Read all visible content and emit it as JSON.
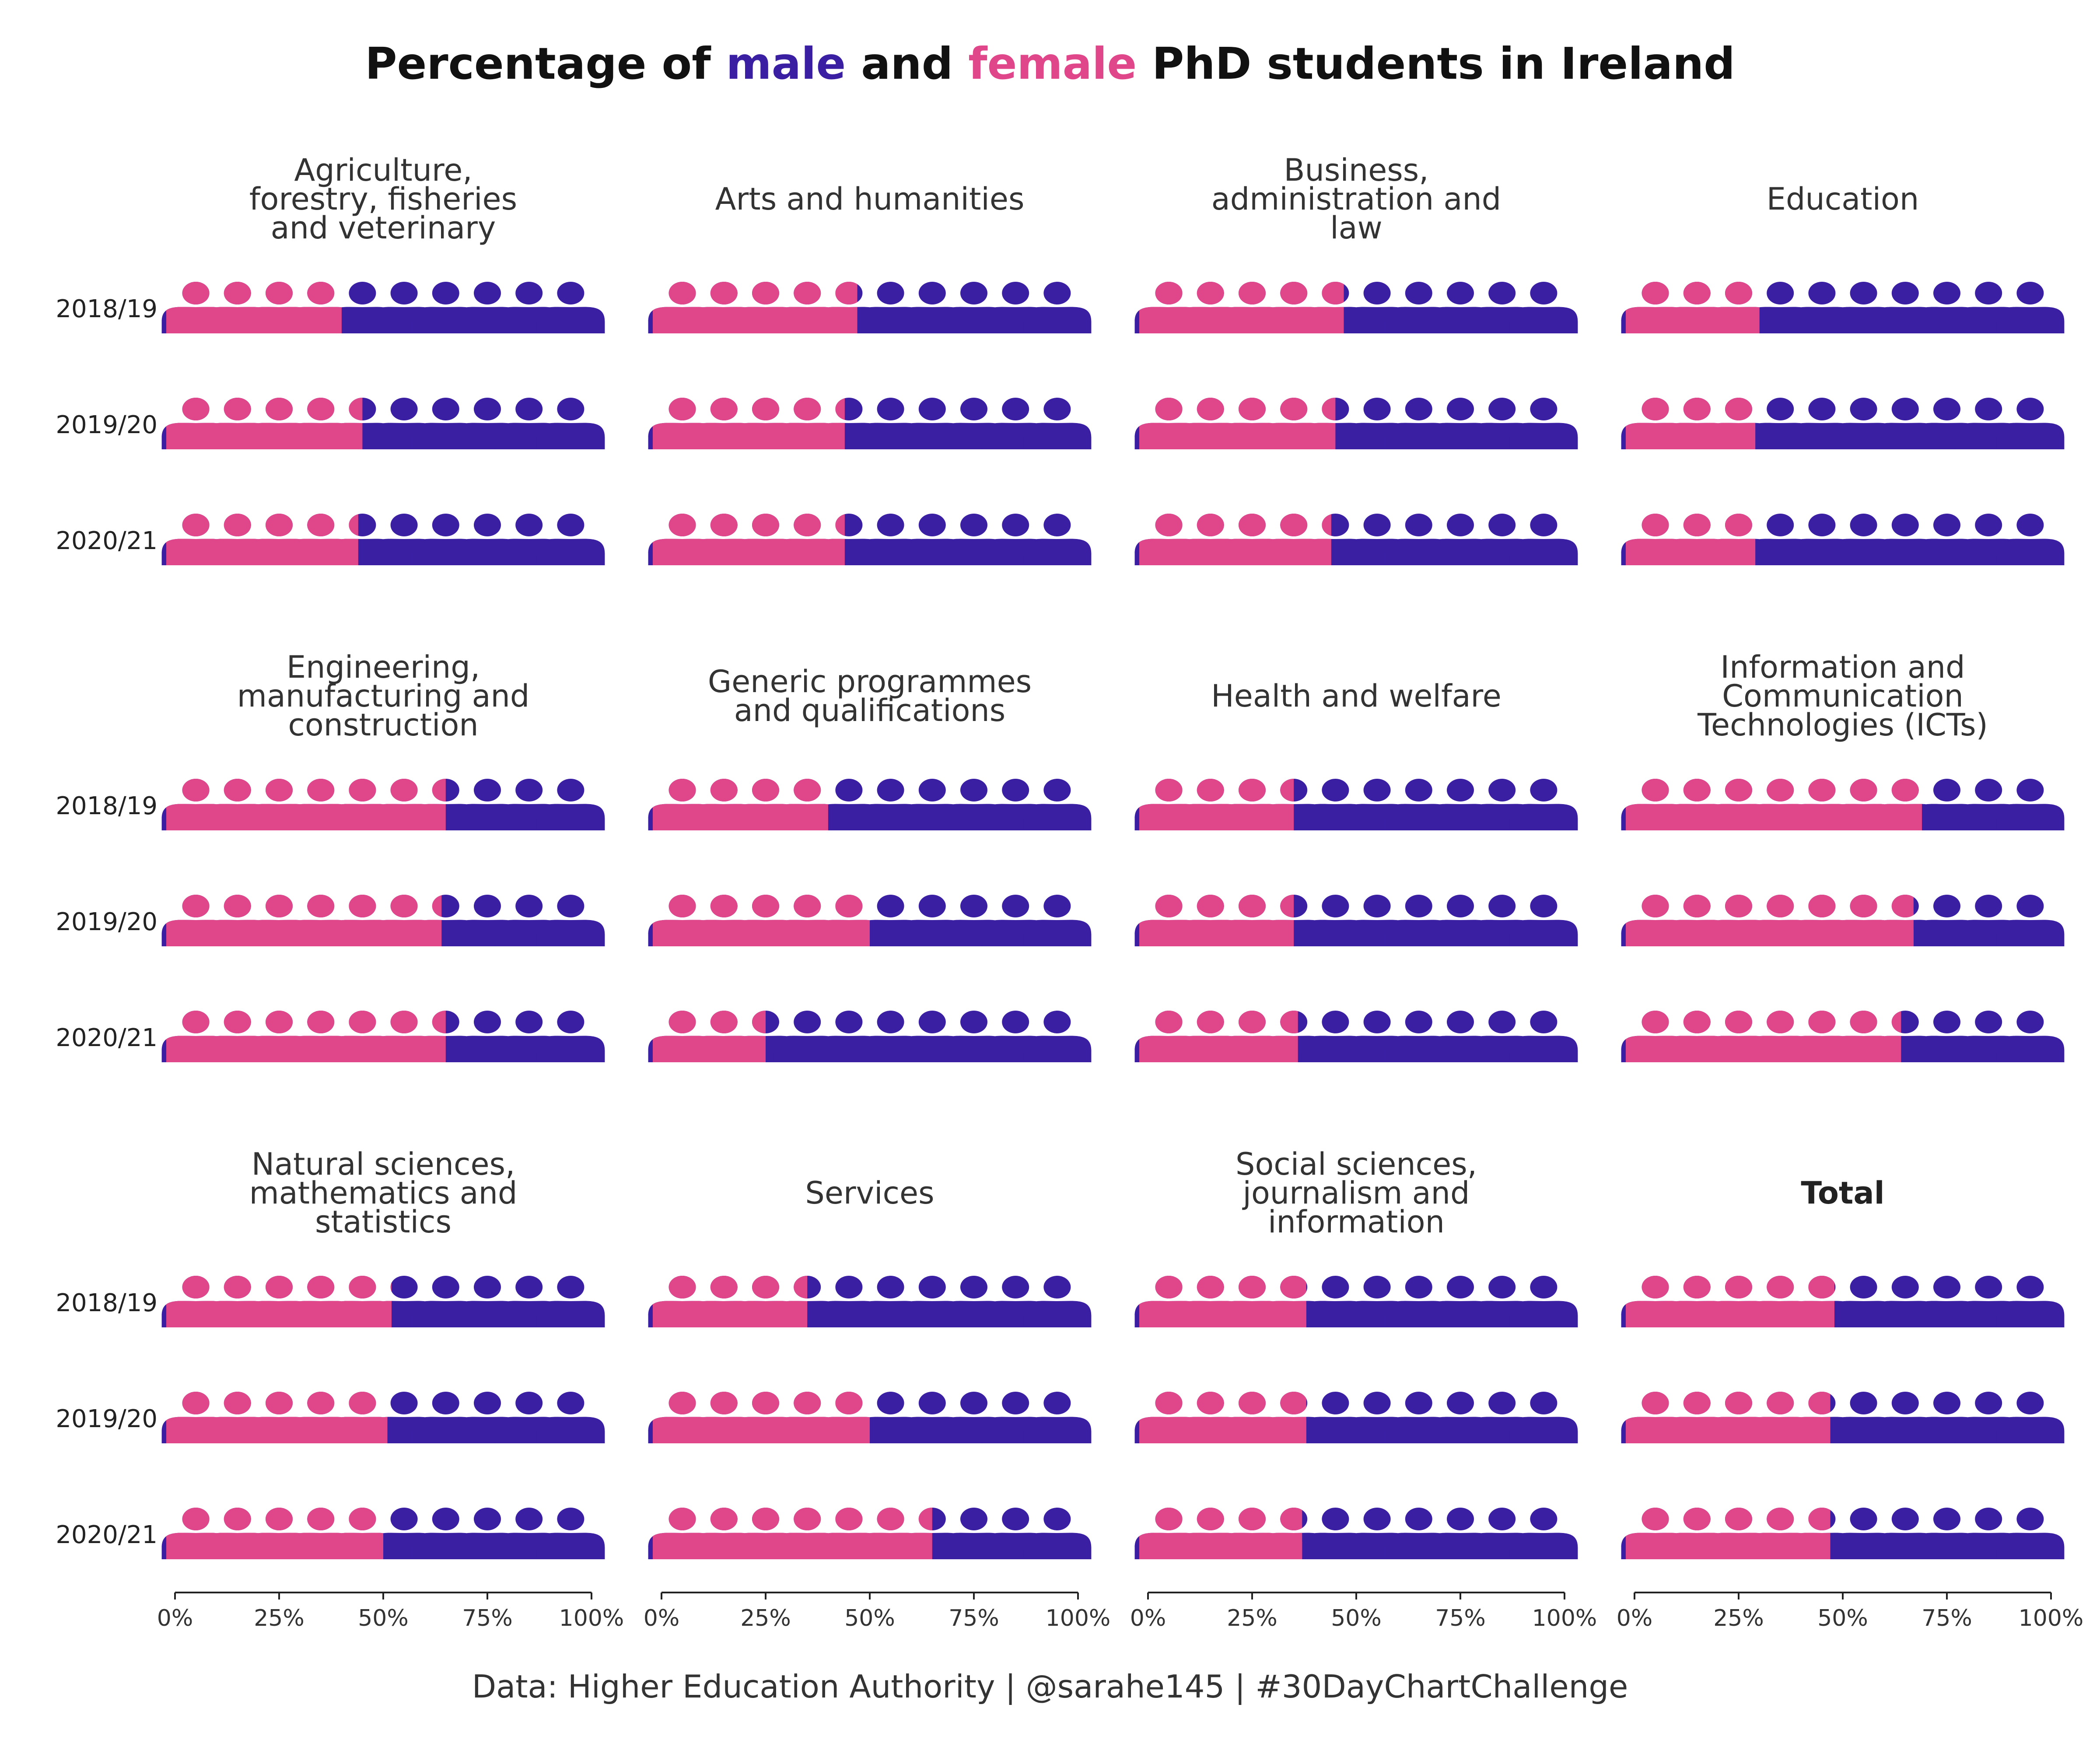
{
  "chart_data": {
    "type": "pictogram",
    "title": {
      "prefix": "Percentage of ",
      "male_word": "male",
      "middle": " and ",
      "female_word": "female",
      "suffix": " PhD students in Ireland"
    },
    "caption": "Data: Higher Education Authority | @sarahe145 | #30DayChartChallenge",
    "colors": {
      "male": "#3a1fa3",
      "female": "#e0468a",
      "text": "#222222"
    },
    "years": [
      "2018/19",
      "2019/20",
      "2020/21"
    ],
    "x_ticks": [
      "0%",
      "25%",
      "50%",
      "75%",
      "100%"
    ],
    "icons_per_row": 10,
    "value_meaning": "female percentage",
    "panels": [
      {
        "name": [
          "Agriculture,",
          "forestry, fisheries",
          "and veterinary"
        ],
        "female_pct": [
          40,
          45,
          44
        ]
      },
      {
        "name": [
          "Arts and humanities"
        ],
        "female_pct": [
          47,
          44,
          44
        ]
      },
      {
        "name": [
          "Business,",
          "administration and",
          "law"
        ],
        "female_pct": [
          47,
          45,
          44
        ]
      },
      {
        "name": [
          "Education"
        ],
        "female_pct": [
          30,
          29,
          29
        ]
      },
      {
        "name": [
          "Engineering,",
          "manufacturing and",
          "construction"
        ],
        "female_pct": [
          65,
          64,
          65
        ]
      },
      {
        "name": [
          "Generic programmes",
          "and qualifications"
        ],
        "female_pct": [
          40,
          50,
          25
        ]
      },
      {
        "name": [
          "Health and welfare"
        ],
        "female_pct": [
          35,
          35,
          36
        ]
      },
      {
        "name": [
          "Information and",
          "Communication",
          "Technologies (ICTs)"
        ],
        "female_pct": [
          69,
          67,
          64
        ]
      },
      {
        "name": [
          "Natural sciences,",
          "mathematics and",
          "statistics"
        ],
        "female_pct": [
          52,
          51,
          50
        ]
      },
      {
        "name": [
          "Services"
        ],
        "female_pct": [
          35,
          50,
          65
        ]
      },
      {
        "name": [
          "Social sciences,",
          "journalism and",
          "information"
        ],
        "female_pct": [
          38,
          38,
          37
        ]
      },
      {
        "name": [
          "Total"
        ],
        "female_pct": [
          48,
          47,
          47
        ],
        "bold": true
      }
    ]
  }
}
